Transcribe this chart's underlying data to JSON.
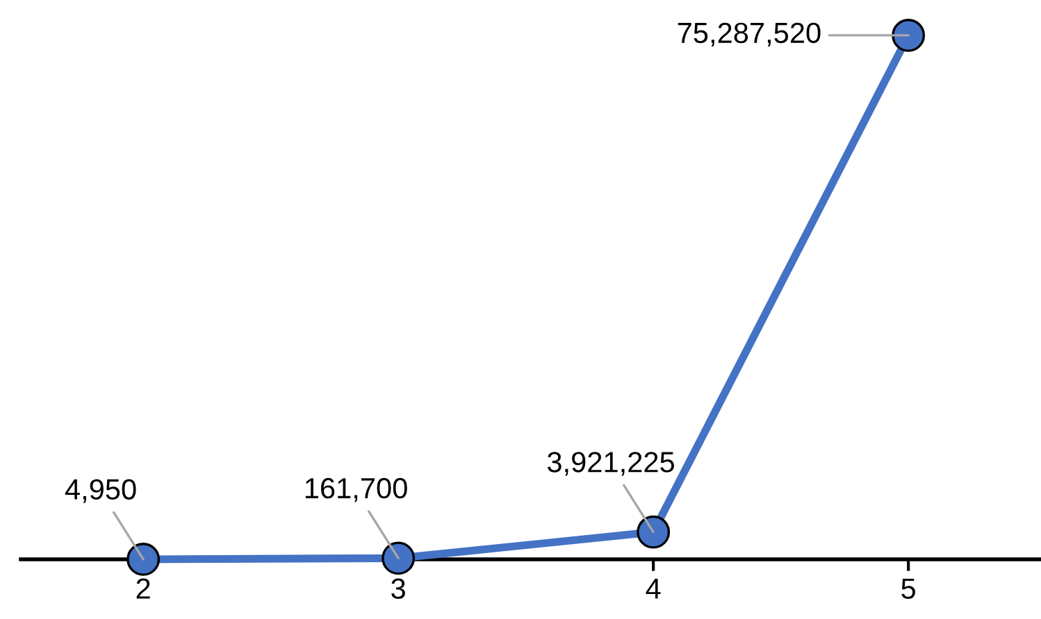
{
  "chart_data": {
    "type": "line",
    "categories": [
      "2",
      "3",
      "4",
      "5"
    ],
    "series": [
      {
        "color": "#4472c4",
        "values": [
          4950,
          161700,
          3921225,
          75287520
        ],
        "value_labels": [
          "4,950",
          "161,700",
          "3,921,225",
          "75,287,520"
        ]
      }
    ],
    "marker": "circle",
    "line_style": "solid",
    "grid": false,
    "legend": false
  }
}
